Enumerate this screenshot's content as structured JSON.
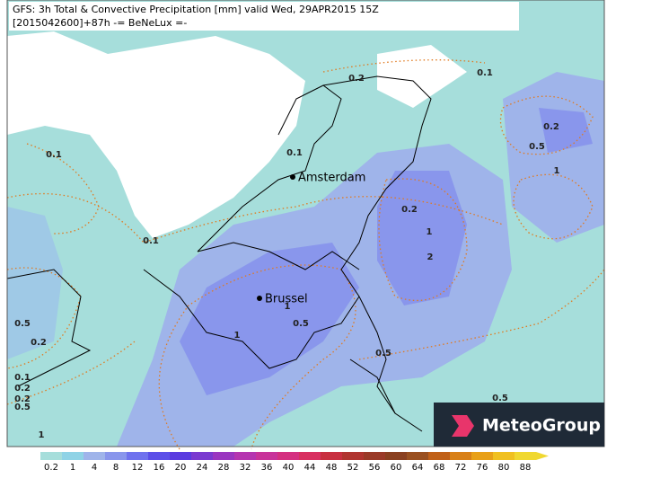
{
  "header": {
    "line1": "GFS: 3h Total & Convective Precipitation [mm] valid Wed, 29APR2015 15Z",
    "line2": "[2015042600]+87h -= BeNeLux =-"
  },
  "cities": [
    "Amsterdam",
    "Brussel"
  ],
  "contour_labels": [
    "0.2",
    "0.1",
    "0.2",
    "0.5",
    "1",
    "0.1",
    "0.1",
    "0.1",
    "0.2",
    "1",
    "2",
    "1",
    "0.5",
    "0.5",
    "0.2",
    "1",
    "0.5",
    "0.2",
    "0.1",
    "0.2",
    "0.5",
    "1",
    "0.5"
  ],
  "colorbar": {
    "labels": [
      "0.2",
      "1",
      "4",
      "8",
      "12",
      "16",
      "20",
      "24",
      "28",
      "32",
      "36",
      "40",
      "44",
      "48",
      "52",
      "56",
      "60",
      "64",
      "68",
      "72",
      "76",
      "80",
      "88"
    ]
  },
  "logo": "MeteoGroup"
}
